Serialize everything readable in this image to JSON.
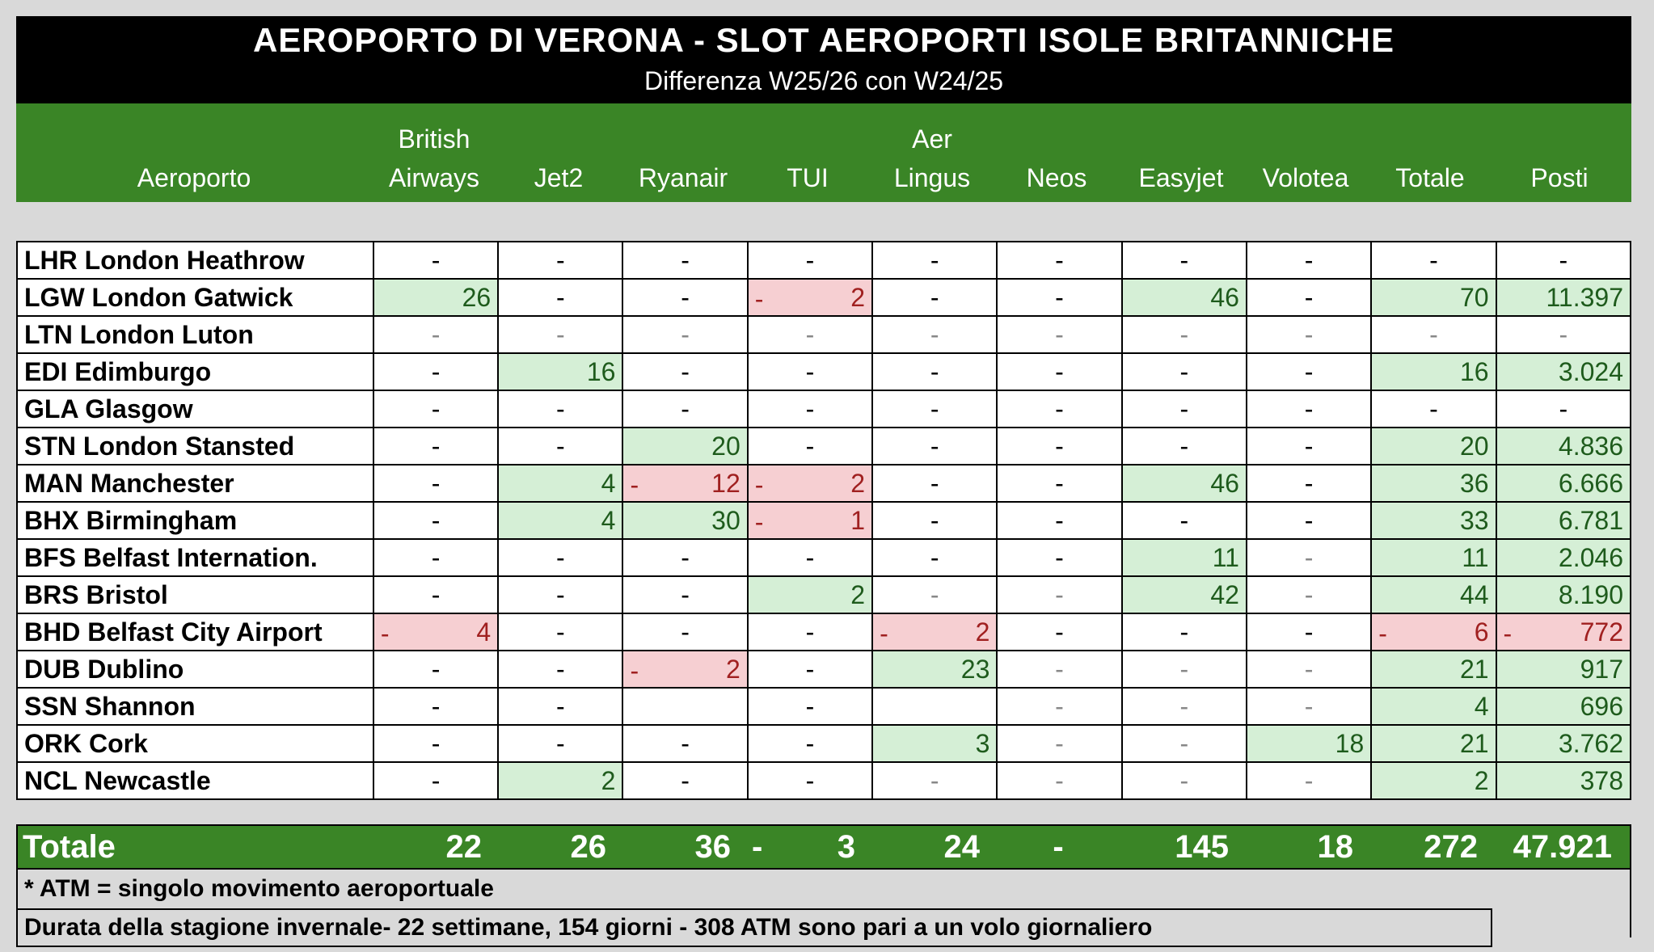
{
  "title": "AEROPORTO DI VERONA  - SLOT AEROPORTI ISOLE BRITANNICHE",
  "subtitle": "Differenza W25/26 con W24/25",
  "headers": [
    {
      "l1": "",
      "l2": "Aeroporto"
    },
    {
      "l1": "British",
      "l2": "Airways"
    },
    {
      "l1": "",
      "l2": "Jet2"
    },
    {
      "l1": "",
      "l2": "Ryanair"
    },
    {
      "l1": "",
      "l2": "TUI"
    },
    {
      "l1": "Aer",
      "l2": "Lingus"
    },
    {
      "l1": "",
      "l2": "Neos"
    },
    {
      "l1": "",
      "l2": "Easyjet"
    },
    {
      "l1": "",
      "l2": "Volotea"
    },
    {
      "l1": "",
      "l2": "Totale"
    },
    {
      "l1": "",
      "l2": "Posti"
    }
  ],
  "rows": [
    {
      "name": "LHR London Heathrow",
      "cells": [
        {
          "v": "-",
          "s": "none"
        },
        {
          "v": "-",
          "s": "none"
        },
        {
          "v": "-",
          "s": "none"
        },
        {
          "v": "-",
          "s": "none"
        },
        {
          "v": "-",
          "s": "none"
        },
        {
          "v": "-",
          "s": "none"
        },
        {
          "v": "-",
          "s": "none"
        },
        {
          "v": "-",
          "s": "none"
        },
        {
          "v": "-",
          "s": "none"
        },
        {
          "v": "-",
          "s": "none"
        }
      ]
    },
    {
      "name": "LGW London Gatwick",
      "cells": [
        {
          "v": "26",
          "s": "pos"
        },
        {
          "v": "-",
          "s": "none"
        },
        {
          "v": "-",
          "s": "none"
        },
        {
          "v": "2",
          "s": "neg"
        },
        {
          "v": "-",
          "s": "none"
        },
        {
          "v": "-",
          "s": "none"
        },
        {
          "v": "46",
          "s": "pos"
        },
        {
          "v": "-",
          "s": "none"
        },
        {
          "v": "70",
          "s": "pos"
        },
        {
          "v": "11.397",
          "s": "pos"
        }
      ]
    },
    {
      "name": "LTN London Luton",
      "cells": [
        {
          "v": "-",
          "s": "dim"
        },
        {
          "v": "-",
          "s": "dim"
        },
        {
          "v": "-",
          "s": "dim"
        },
        {
          "v": "-",
          "s": "dim"
        },
        {
          "v": "-",
          "s": "dim"
        },
        {
          "v": "-",
          "s": "dim"
        },
        {
          "v": "-",
          "s": "dim"
        },
        {
          "v": "-",
          "s": "dim"
        },
        {
          "v": "-",
          "s": "dim"
        },
        {
          "v": "-",
          "s": "dim"
        }
      ]
    },
    {
      "name": "EDI Edimburgo",
      "cells": [
        {
          "v": "-",
          "s": "none"
        },
        {
          "v": "16",
          "s": "pos"
        },
        {
          "v": "-",
          "s": "none"
        },
        {
          "v": "-",
          "s": "none"
        },
        {
          "v": "-",
          "s": "none"
        },
        {
          "v": "-",
          "s": "none"
        },
        {
          "v": "-",
          "s": "none"
        },
        {
          "v": "-",
          "s": "none"
        },
        {
          "v": "16",
          "s": "pos"
        },
        {
          "v": "3.024",
          "s": "pos"
        }
      ]
    },
    {
      "name": "GLA Glasgow",
      "cells": [
        {
          "v": "-",
          "s": "none"
        },
        {
          "v": "-",
          "s": "none"
        },
        {
          "v": "-",
          "s": "none"
        },
        {
          "v": "-",
          "s": "none"
        },
        {
          "v": "-",
          "s": "none"
        },
        {
          "v": "-",
          "s": "none"
        },
        {
          "v": "-",
          "s": "none"
        },
        {
          "v": "-",
          "s": "none"
        },
        {
          "v": "-",
          "s": "none"
        },
        {
          "v": "-",
          "s": "none"
        }
      ]
    },
    {
      "name": "STN London Stansted",
      "cells": [
        {
          "v": "-",
          "s": "none"
        },
        {
          "v": "-",
          "s": "none"
        },
        {
          "v": "20",
          "s": "pos"
        },
        {
          "v": "-",
          "s": "none"
        },
        {
          "v": "-",
          "s": "none"
        },
        {
          "v": "-",
          "s": "none"
        },
        {
          "v": "-",
          "s": "none"
        },
        {
          "v": "-",
          "s": "none"
        },
        {
          "v": "20",
          "s": "pos"
        },
        {
          "v": "4.836",
          "s": "pos"
        }
      ]
    },
    {
      "name": "MAN Manchester",
      "cells": [
        {
          "v": "-",
          "s": "none"
        },
        {
          "v": "4",
          "s": "pos"
        },
        {
          "v": "12",
          "s": "neg"
        },
        {
          "v": "2",
          "s": "neg"
        },
        {
          "v": "-",
          "s": "none"
        },
        {
          "v": "-",
          "s": "none"
        },
        {
          "v": "46",
          "s": "pos"
        },
        {
          "v": "-",
          "s": "none"
        },
        {
          "v": "36",
          "s": "pos"
        },
        {
          "v": "6.666",
          "s": "pos"
        }
      ]
    },
    {
      "name": "BHX Birmingham",
      "cells": [
        {
          "v": "-",
          "s": "none"
        },
        {
          "v": "4",
          "s": "pos"
        },
        {
          "v": "30",
          "s": "pos"
        },
        {
          "v": "1",
          "s": "neg"
        },
        {
          "v": "-",
          "s": "none"
        },
        {
          "v": "-",
          "s": "none"
        },
        {
          "v": "-",
          "s": "none"
        },
        {
          "v": "-",
          "s": "none"
        },
        {
          "v": "33",
          "s": "pos"
        },
        {
          "v": "6.781",
          "s": "pos"
        }
      ]
    },
    {
      "name": "BFS Belfast Internation.",
      "cells": [
        {
          "v": "-",
          "s": "none"
        },
        {
          "v": "-",
          "s": "none"
        },
        {
          "v": "-",
          "s": "none"
        },
        {
          "v": "-",
          "s": "none"
        },
        {
          "v": "-",
          "s": "none"
        },
        {
          "v": "-",
          "s": "none"
        },
        {
          "v": "11",
          "s": "pos"
        },
        {
          "v": "-",
          "s": "dim"
        },
        {
          "v": "11",
          "s": "pos"
        },
        {
          "v": "2.046",
          "s": "pos"
        }
      ]
    },
    {
      "name": "BRS Bristol",
      "cells": [
        {
          "v": "-",
          "s": "none"
        },
        {
          "v": "-",
          "s": "none"
        },
        {
          "v": "-",
          "s": "none"
        },
        {
          "v": "2",
          "s": "pos"
        },
        {
          "v": "-",
          "s": "dim"
        },
        {
          "v": "-",
          "s": "dim"
        },
        {
          "v": "42",
          "s": "pos"
        },
        {
          "v": "-",
          "s": "dim"
        },
        {
          "v": "44",
          "s": "pos"
        },
        {
          "v": "8.190",
          "s": "pos"
        }
      ]
    },
    {
      "name": "BHD Belfast City Airport",
      "cells": [
        {
          "v": "4",
          "s": "neg"
        },
        {
          "v": "-",
          "s": "none"
        },
        {
          "v": "-",
          "s": "none"
        },
        {
          "v": "-",
          "s": "none"
        },
        {
          "v": "2",
          "s": "neg"
        },
        {
          "v": "-",
          "s": "none"
        },
        {
          "v": "-",
          "s": "none"
        },
        {
          "v": "-",
          "s": "none"
        },
        {
          "v": "6",
          "s": "neg"
        },
        {
          "v": "772",
          "s": "neg"
        }
      ]
    },
    {
      "name": "DUB Dublino",
      "cells": [
        {
          "v": "-",
          "s": "none"
        },
        {
          "v": "-",
          "s": "none"
        },
        {
          "v": "2",
          "s": "neg"
        },
        {
          "v": "-",
          "s": "none"
        },
        {
          "v": "23",
          "s": "pos"
        },
        {
          "v": "-",
          "s": "dim"
        },
        {
          "v": "-",
          "s": "dim"
        },
        {
          "v": "-",
          "s": "dim"
        },
        {
          "v": "21",
          "s": "pos"
        },
        {
          "v": "917",
          "s": "pos"
        }
      ]
    },
    {
      "name": "SSN Shannon",
      "cells": [
        {
          "v": "-",
          "s": "none"
        },
        {
          "v": "-",
          "s": "none"
        },
        {
          "v": "",
          "s": "empty"
        },
        {
          "v": "-",
          "s": "none"
        },
        {
          "v": "",
          "s": "empty"
        },
        {
          "v": "-",
          "s": "dim"
        },
        {
          "v": "-",
          "s": "dim"
        },
        {
          "v": "-",
          "s": "dim"
        },
        {
          "v": "4",
          "s": "pos"
        },
        {
          "v": "696",
          "s": "pos"
        }
      ]
    },
    {
      "name": "ORK Cork",
      "cells": [
        {
          "v": "-",
          "s": "none"
        },
        {
          "v": "-",
          "s": "none"
        },
        {
          "v": "-",
          "s": "none"
        },
        {
          "v": "-",
          "s": "none"
        },
        {
          "v": "3",
          "s": "pos"
        },
        {
          "v": "-",
          "s": "dim"
        },
        {
          "v": "-",
          "s": "dim"
        },
        {
          "v": "18",
          "s": "pos"
        },
        {
          "v": "21",
          "s": "pos"
        },
        {
          "v": "3.762",
          "s": "pos"
        }
      ]
    },
    {
      "name": "NCL Newcastle",
      "cells": [
        {
          "v": "-",
          "s": "none"
        },
        {
          "v": "2",
          "s": "pos"
        },
        {
          "v": "-",
          "s": "none"
        },
        {
          "v": "-",
          "s": "none"
        },
        {
          "v": "-",
          "s": "dim"
        },
        {
          "v": "-",
          "s": "dim"
        },
        {
          "v": "-",
          "s": "dim"
        },
        {
          "v": "-",
          "s": "dim"
        },
        {
          "v": "2",
          "s": "pos"
        },
        {
          "v": "378",
          "s": "pos"
        }
      ]
    }
  ],
  "totals": {
    "label": "Totale",
    "values": [
      "22",
      "26",
      "36",
      "3",
      "24",
      "-",
      "145",
      "18",
      "272",
      "47.921"
    ],
    "negative_index": 3
  },
  "notes": {
    "atm": "* ATM = singolo movimento aeroportuale",
    "season": "Durata della stagione invernale- 22 settimane, 154 giorni - 308 ATM sono pari a un volo giornaliero"
  },
  "colors": {
    "header_green": "#3a8526",
    "positive_fill": "#d5efd6",
    "negative_fill": "#f6cfd2",
    "title_bg": "#000000"
  }
}
